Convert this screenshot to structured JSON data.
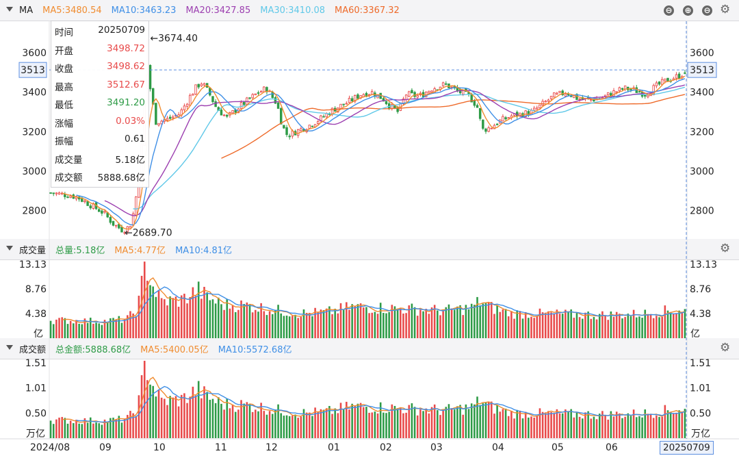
{
  "colors": {
    "up": "#e84a4a",
    "down": "#2e9b47",
    "ma5": "#f08c30",
    "ma10": "#3f8fe6",
    "ma20": "#9c3fb0",
    "ma30": "#5fc8e8",
    "ma60": "#ee6a2a",
    "total": "#2e9b47",
    "cross": "#5b8ee0"
  },
  "main_header": {
    "name": "MA",
    "items": [
      {
        "label": "MA5:3480.54",
        "color": "#f08c30"
      },
      {
        "label": "MA10:3463.23",
        "color": "#3f8fe6"
      },
      {
        "label": "MA20:3427.85",
        "color": "#9c3fb0"
      },
      {
        "label": "MA30:3410.08",
        "color": "#5fc8e8"
      },
      {
        "label": "MA60:3367.32",
        "color": "#ee6a2a"
      }
    ],
    "buttons": [
      "⊖",
      "⊕",
      "⊖"
    ],
    "gear": "gear-icon"
  },
  "volume_header": {
    "name": "成交量",
    "items": [
      {
        "label": "总量:5.18亿",
        "color": "#2e9b47"
      },
      {
        "label": "MA5:4.77亿",
        "color": "#f08c30"
      },
      {
        "label": "MA10:4.81亿",
        "color": "#3f8fe6"
      }
    ]
  },
  "amount_header": {
    "name": "成交额",
    "items": [
      {
        "label": "总金额:5888.68亿",
        "color": "#2e9b47"
      },
      {
        "label": "MA5:5400.05亿",
        "color": "#f08c30"
      },
      {
        "label": "MA10:5572.68亿",
        "color": "#3f8fe6"
      }
    ]
  },
  "tooltip": [
    {
      "label": "时间",
      "value": "20250709",
      "color": "#222222"
    },
    {
      "label": "开盘",
      "value": "3498.72",
      "color": "#e84a4a"
    },
    {
      "label": "收盘",
      "value": "3498.62",
      "color": "#e84a4a"
    },
    {
      "label": "最高",
      "value": "3512.67",
      "color": "#e84a4a"
    },
    {
      "label": "最低",
      "value": "3491.20",
      "color": "#2e9b47"
    },
    {
      "label": "涨幅",
      "value": "0.03%",
      "color": "#e84a4a"
    },
    {
      "label": "振幅",
      "value": "0.61",
      "color": "#222222"
    },
    {
      "label": "成交量",
      "value": "5.18亿",
      "color": "#222222"
    },
    {
      "label": "成交额",
      "value": "5888.68亿",
      "color": "#222222"
    }
  ],
  "x_labels": [
    "2024/08",
    "09",
    "10",
    "11",
    "12",
    "01",
    "02",
    "03",
    "04",
    "05",
    "06"
  ],
  "x_last": "20250709",
  "chart_data": [
    {
      "type": "candlestick",
      "y_ticks": [
        "2800",
        "3000",
        "3200",
        "3400",
        "3600"
      ],
      "ylim": [
        2660,
        3760
      ],
      "crosshair_value": "3513",
      "annotations": [
        {
          "text": "←3674.40",
          "date": "2024/10/08",
          "value": 3674.4
        },
        {
          "text": "←2689.70",
          "date": "2024/09/18",
          "value": 2689.7
        }
      ],
      "indicators": [
        "MA5",
        "MA10",
        "MA20",
        "MA30",
        "MA60"
      ],
      "last": {
        "date": "20250709",
        "open": 3498.72,
        "close": 3498.62,
        "high": 3512.67,
        "low": 3491.2
      }
    },
    {
      "type": "bar",
      "name": "成交量",
      "y_ticks": [
        "4.38",
        "8.76",
        "13.13"
      ],
      "unit": "亿",
      "ylim": [
        0,
        13.13
      ]
    },
    {
      "type": "bar",
      "name": "成交额",
      "y_ticks": [
        "0.50",
        "1.01",
        "1.51"
      ],
      "unit": "万亿",
      "ylim": [
        0,
        1.51
      ]
    }
  ]
}
